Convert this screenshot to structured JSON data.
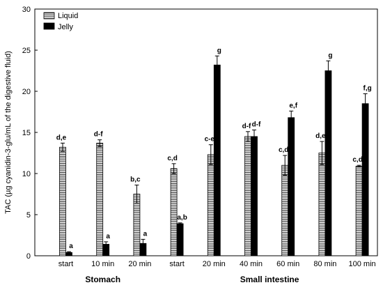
{
  "chart_data": {
    "type": "bar",
    "ylabel": "TAC (µg cyanidin-3-glu/mL of the digestive fluid)",
    "ylim": [
      0,
      30
    ],
    "yticks": [
      0,
      5,
      10,
      15,
      20,
      25,
      30
    ],
    "grid": false,
    "legend_position": "top-left",
    "categories": [
      "start",
      "10 min",
      "20 min",
      "start",
      "20 min",
      "40 min",
      "60 min",
      "80 min",
      "100 min"
    ],
    "groups": [
      {
        "label": "Stomach",
        "from": 0,
        "to": 2
      },
      {
        "label": "Small intestine",
        "from": 3,
        "to": 8
      }
    ],
    "series": [
      {
        "name": "Liquid",
        "style": "hatched",
        "values": [
          13.2,
          13.7,
          7.5,
          10.6,
          12.3,
          14.5,
          11.0,
          12.5,
          10.9
        ],
        "errors": [
          0.5,
          0.4,
          1.1,
          0.6,
          1.2,
          0.6,
          1.2,
          1.4,
          0.1
        ],
        "labels": [
          "d,e",
          "d-f",
          "b,c",
          "c,d",
          "c-e",
          "d-f",
          "c,d",
          "d,e",
          "c,d"
        ]
      },
      {
        "name": "Jelly",
        "style": "solid",
        "color": "#000000",
        "values": [
          0.4,
          1.4,
          1.5,
          3.9,
          23.2,
          14.5,
          16.8,
          22.5,
          18.5
        ],
        "errors": [
          0.1,
          0.3,
          0.5,
          0.1,
          1.1,
          0.8,
          0.8,
          1.2,
          1.2
        ],
        "labels": [
          "a",
          "a",
          "a",
          "a,b",
          "g",
          "d-f",
          "e,f",
          "g",
          "f,g"
        ]
      }
    ]
  }
}
